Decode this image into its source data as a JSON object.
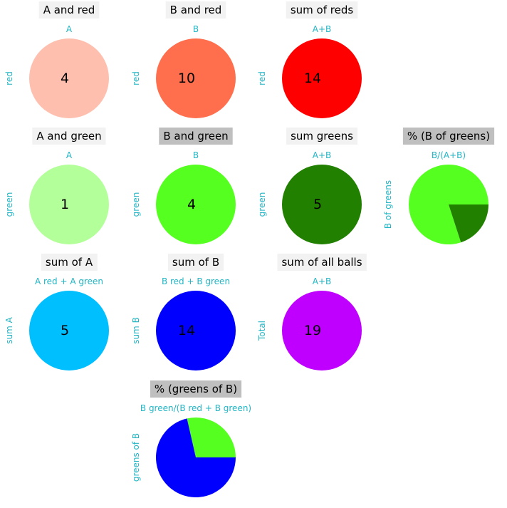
{
  "chart_data": [
    {
      "type": "pie",
      "title": "A and red",
      "xlabel": "A",
      "ylabel": "red",
      "values": [
        4
      ],
      "colors": [
        "#ffbfae"
      ],
      "label": "4",
      "highlight": false
    },
    {
      "type": "pie",
      "title": "B and red",
      "xlabel": "B",
      "ylabel": "red",
      "values": [
        10
      ],
      "colors": [
        "#ff6f4d"
      ],
      "label": "10",
      "highlight": false
    },
    {
      "type": "pie",
      "title": "sum of reds",
      "xlabel": "A+B",
      "ylabel": "red",
      "values": [
        14
      ],
      "colors": [
        "#ff0000"
      ],
      "label": "14",
      "highlight": false
    },
    {
      "type": "pie",
      "title": "A and green",
      "xlabel": "A",
      "ylabel": "green",
      "values": [
        1
      ],
      "colors": [
        "#b3ff99"
      ],
      "label": "1",
      "highlight": false
    },
    {
      "type": "pie",
      "title": "B and green",
      "xlabel": "B",
      "ylabel": "green",
      "values": [
        4
      ],
      "colors": [
        "#55ff1f"
      ],
      "label": "4",
      "highlight": true
    },
    {
      "type": "pie",
      "title": "sum greens",
      "xlabel": "A+B",
      "ylabel": "green",
      "values": [
        5
      ],
      "colors": [
        "#228000"
      ],
      "label": "5",
      "highlight": false
    },
    {
      "type": "pie",
      "title": "% (B of greens)",
      "xlabel": "B/(A+B)",
      "ylabel": "B of greens",
      "values": [
        4,
        1
      ],
      "colors": [
        "#55ff1f",
        "#228000"
      ],
      "label": "",
      "highlight": true
    },
    {
      "type": "pie",
      "title": "sum of A",
      "xlabel": "A red + A green",
      "ylabel": "sum A",
      "values": [
        5
      ],
      "colors": [
        "#00bfff"
      ],
      "label": "5",
      "highlight": false
    },
    {
      "type": "pie",
      "title": "sum of B",
      "xlabel": "B red + B green",
      "ylabel": "sum B",
      "values": [
        14
      ],
      "colors": [
        "#0000ff"
      ],
      "label": "14",
      "highlight": false
    },
    {
      "type": "pie",
      "title": "sum of all balls",
      "xlabel": "A+B",
      "ylabel": "Total",
      "values": [
        19
      ],
      "colors": [
        "#bf00ff"
      ],
      "label": "19",
      "highlight": false
    },
    {
      "type": "pie",
      "title": "% (greens of B)",
      "xlabel": "B green/(B red + B green)",
      "ylabel": "greens of B",
      "values": [
        4,
        10
      ],
      "colors": [
        "#55ff1f",
        "#0000ff"
      ],
      "label": "",
      "highlight": true
    }
  ]
}
